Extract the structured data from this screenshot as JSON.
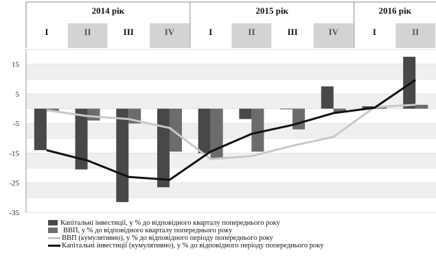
{
  "chart_data": {
    "type": "bar",
    "years": [
      "2014 рік",
      "2015 рік",
      "2016 рік"
    ],
    "categories": [
      "I",
      "II",
      "III",
      "IV",
      "I",
      "II",
      "III",
      "IV",
      "I",
      "II"
    ],
    "yticks": [
      "15",
      "5",
      "-5",
      "-15",
      "-25",
      "-35"
    ],
    "ylim": [
      -35,
      20
    ],
    "grid": true,
    "series": [
      {
        "name": "Капітальні інвестиції, у % до відповідного кварталу попереднього року",
        "kind": "bar",
        "color": "#484848",
        "values": [
          -14,
          -20.5,
          -31.5,
          -26.5,
          -15,
          -3.5,
          -0.2,
          7.5,
          0.8,
          17.5
        ]
      },
      {
        "name": "ВВП, у % до відповідного кварталу попереднього року",
        "kind": "bar",
        "color": "#6c6c6c",
        "values": [
          -1,
          -4,
          -5,
          -14.5,
          -17,
          -14.5,
          -7,
          -1.3,
          0.7,
          1.3
        ]
      },
      {
        "name": "ВВП (кумулятивно), у % до відповідного періоду попереднього року",
        "kind": "line",
        "color": "#c8c8c8",
        "values": [
          -0.5,
          -2.5,
          -3.5,
          -6.5,
          -17,
          -16,
          -12.5,
          -9.5,
          0.5,
          1.3
        ]
      },
      {
        "name": "Капітальні інвестиції (кумулятивно), у % до відповідного періоду попереднього року",
        "kind": "line",
        "color": "#111111",
        "values": [
          -14,
          -17.5,
          -23,
          -24,
          -14.5,
          -8.5,
          -5.5,
          -1.5,
          0.3,
          9.7
        ]
      }
    ]
  }
}
